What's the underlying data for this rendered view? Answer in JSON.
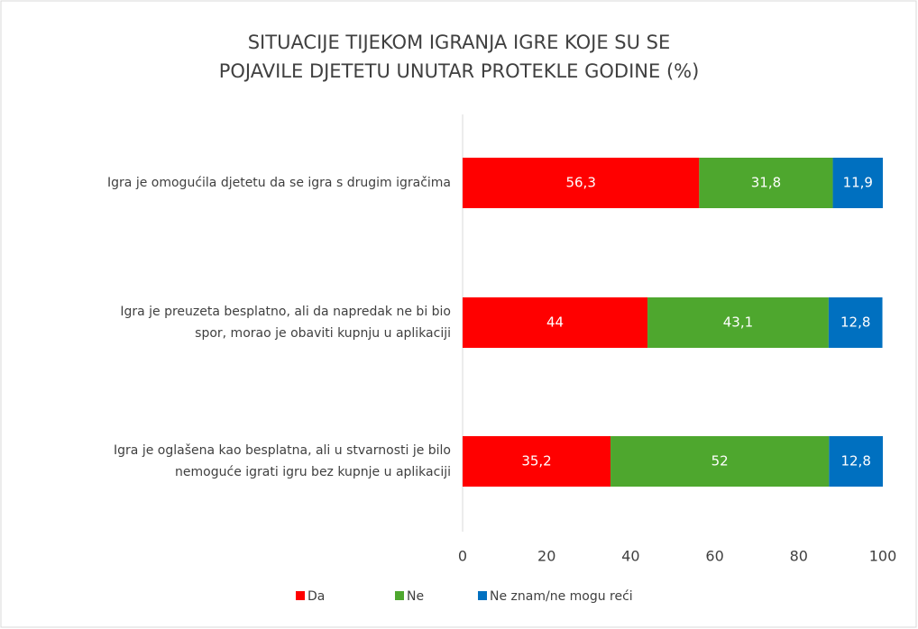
{
  "chart_data": {
    "type": "stacked-bar-horizontal",
    "title": [
      "SITUACIJE TIJEKOM IGRANJA IGRE KOJE SU SE",
      "POJAVILE DJETETU UNUTAR PROTEKLE GODINE (%)"
    ],
    "categories": [
      [
        "Igra je omogućila djetetu da se igra s drugim igračima"
      ],
      [
        "Igra je preuzeta besplatno, ali da napredak ne bi bio",
        "spor, morao je obaviti kupnju u aplikaciji"
      ],
      [
        "Igra je oglašena kao besplatna, ali u stvarnosti je bilo",
        "nemoguće igrati igru bez kupnje u aplikaciji"
      ]
    ],
    "series": [
      {
        "name": "Da",
        "color": "#ff0000",
        "values": [
          56.3,
          44,
          35.2
        ],
        "value_labels": [
          "56,3",
          "44",
          "35,2"
        ]
      },
      {
        "name": "Ne",
        "color": "#4ea72e",
        "values": [
          31.8,
          43.1,
          52
        ],
        "value_labels": [
          "31,8",
          "43,1",
          "52"
        ]
      },
      {
        "name": "Ne znam/ne mogu reći",
        "color": "#0070c0",
        "values": [
          11.9,
          12.8,
          12.8
        ],
        "value_labels": [
          "11,9",
          "12,8",
          "12,8"
        ]
      }
    ],
    "xlim": [
      0,
      100
    ],
    "xticks": [
      0,
      20,
      40,
      60,
      80,
      100
    ],
    "legend": "bottom"
  }
}
